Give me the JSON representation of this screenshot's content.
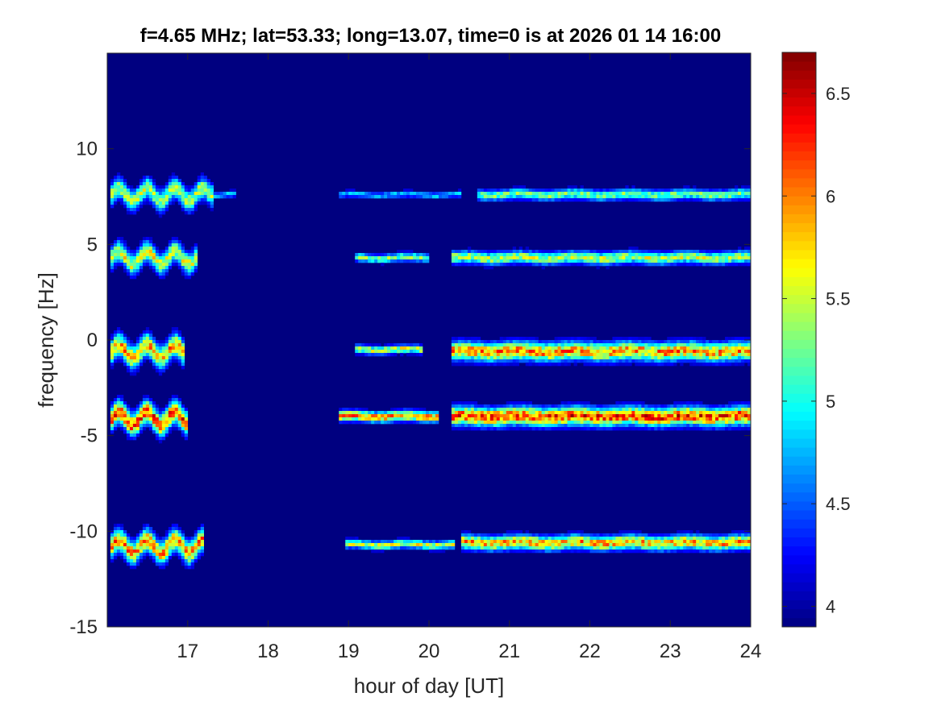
{
  "chart_data": {
    "type": "heatmap",
    "title": "f=4.65 MHz;  lat=53.33; long=13.07, time=0 is at 2026 01 14 16:00",
    "xlabel": "hour of day [UT]",
    "ylabel": "frequency [Hz]",
    "xlim": [
      16.0,
      24.0
    ],
    "ylim": [
      -15,
      15
    ],
    "xticks": [
      17,
      18,
      19,
      20,
      21,
      22,
      23,
      24
    ],
    "yticks": [
      -15,
      -10,
      -5,
      0,
      5,
      10
    ],
    "colorbar": {
      "colormap": "jet",
      "clim": [
        3.9,
        6.7
      ],
      "ticks": [
        4,
        4.5,
        5,
        5.5,
        6,
        6.5
      ]
    },
    "background_value": 3.95,
    "bands": [
      {
        "name": "",
        "segments": [
          {
            "freq": 7.6,
            "x_start": 16.05,
            "x_end": 17.3,
            "spread": 0.5,
            "peak": 5.8
          },
          {
            "freq": 7.6,
            "x_start": 17.3,
            "x_end": 17.6,
            "spread": 0.15,
            "peak": 5.0
          },
          {
            "freq": 7.6,
            "x_start": 18.9,
            "x_end": 20.4,
            "spread": 0.15,
            "peak": 5.0
          },
          {
            "freq": 7.6,
            "x_start": 20.6,
            "x_end": 24.0,
            "spread": 0.25,
            "peak": 5.6
          }
        ]
      },
      {
        "name": "",
        "segments": [
          {
            "freq": 4.3,
            "x_start": 16.05,
            "x_end": 17.1,
            "spread": 0.5,
            "peak": 6.0
          },
          {
            "freq": 4.3,
            "x_start": 19.1,
            "x_end": 20.0,
            "spread": 0.2,
            "peak": 5.6
          },
          {
            "freq": 4.3,
            "x_start": 20.3,
            "x_end": 24.0,
            "spread": 0.3,
            "peak": 5.8
          }
        ]
      },
      {
        "name": "",
        "segments": [
          {
            "freq": -0.6,
            "x_start": 16.05,
            "x_end": 16.95,
            "spread": 0.55,
            "peak": 6.3
          },
          {
            "freq": -0.5,
            "x_start": 19.1,
            "x_end": 19.9,
            "spread": 0.2,
            "peak": 5.9
          },
          {
            "freq": -0.6,
            "x_start": 20.3,
            "x_end": 24.0,
            "spread": 0.45,
            "peak": 6.4
          }
        ]
      },
      {
        "name": "",
        "segments": [
          {
            "freq": -4.1,
            "x_start": 16.05,
            "x_end": 17.0,
            "spread": 0.55,
            "peak": 6.7
          },
          {
            "freq": -4.0,
            "x_start": 18.9,
            "x_end": 20.1,
            "spread": 0.25,
            "peak": 6.5
          },
          {
            "freq": -4.0,
            "x_start": 20.3,
            "x_end": 24.0,
            "spread": 0.45,
            "peak": 6.7
          }
        ]
      },
      {
        "name": "",
        "segments": [
          {
            "freq": -10.8,
            "x_start": 16.05,
            "x_end": 17.2,
            "spread": 0.55,
            "peak": 6.4
          },
          {
            "freq": -10.7,
            "x_start": 18.95,
            "x_end": 20.3,
            "spread": 0.2,
            "peak": 5.9
          },
          {
            "freq": -10.6,
            "x_start": 20.4,
            "x_end": 24.0,
            "spread": 0.35,
            "peak": 6.3
          }
        ]
      }
    ]
  }
}
